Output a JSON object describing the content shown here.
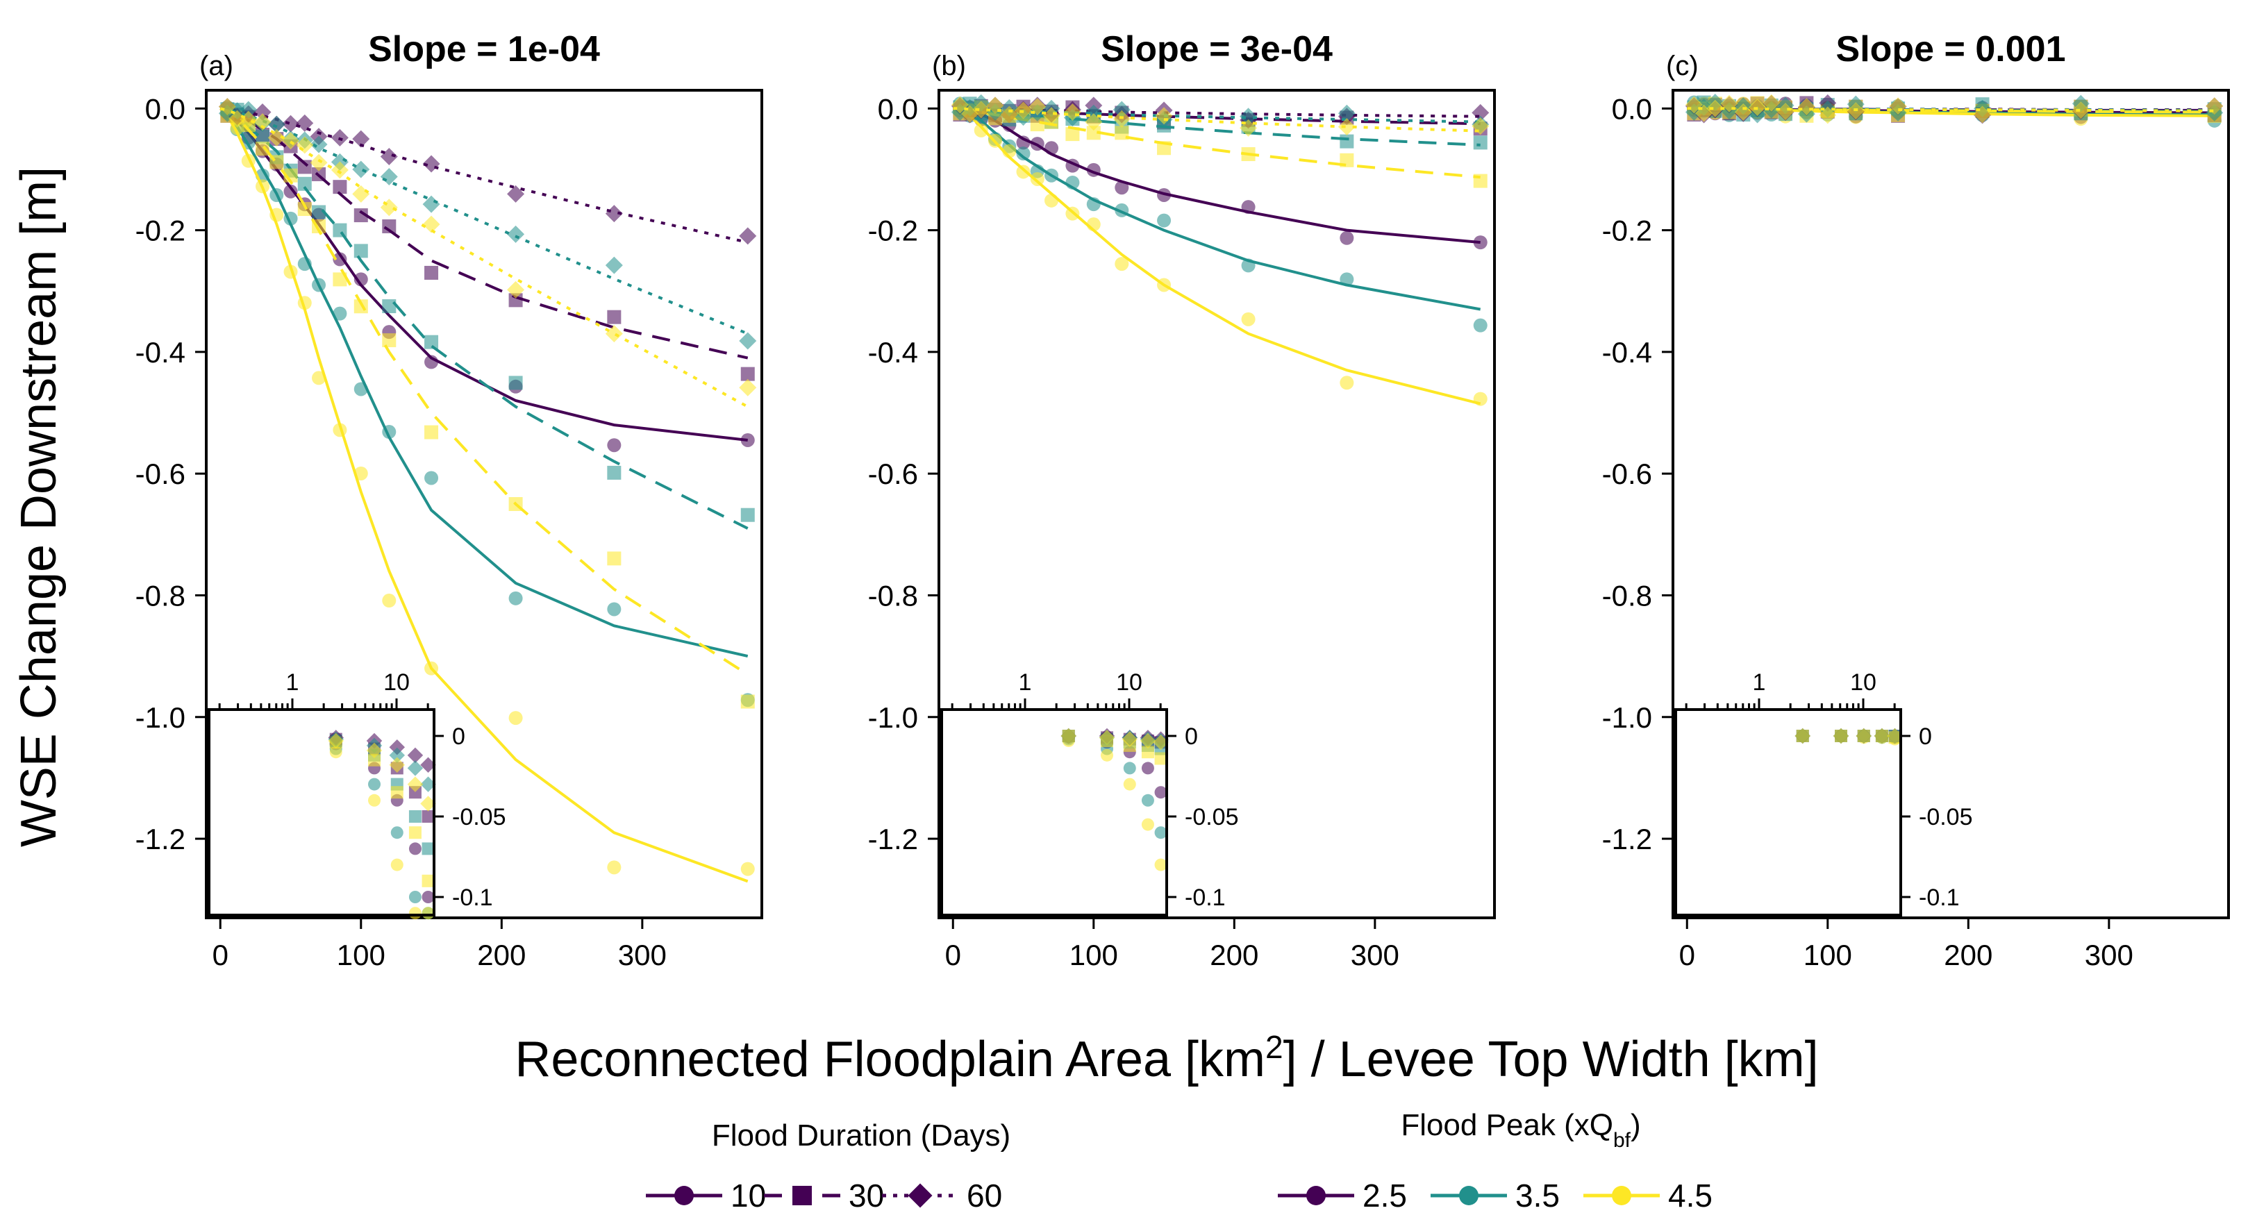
{
  "figure": {
    "x_axis_label_pre": "Reconnected Floodplain Area [km",
    "x_axis_label_sup": "2",
    "x_axis_label_post": "] / Levee Top Width [km]",
    "y_axis_label": "WSE Change Downstream [m]",
    "legend": {
      "duration_title": "Flood Duration (Days)",
      "duration_items": [
        {
          "label": "10",
          "line": "solid",
          "marker": "circle"
        },
        {
          "label": "30",
          "line": "dashed",
          "marker": "square"
        },
        {
          "label": "60",
          "line": "dotted",
          "marker": "diamond"
        }
      ],
      "peak_title_pre": "Flood Peak (xQ",
      "peak_title_sub": "bf",
      "peak_title_post": ")",
      "peak_items": [
        {
          "label": "2.5",
          "color": "#440154"
        },
        {
          "label": "3.5",
          "color": "#21908C"
        },
        {
          "label": "4.5",
          "color": "#FDE725"
        }
      ]
    }
  },
  "chart_data": [
    {
      "type": "line",
      "panel_label": "(a)",
      "title": "Slope = 1e-04",
      "xlim": [
        -10,
        385
      ],
      "ylim": [
        -1.33,
        0.03
      ],
      "x_ticks": [
        "0",
        "100",
        "200",
        "300"
      ],
      "y_ticks": [
        "0.0",
        "-0.2",
        "-0.4",
        "-0.6",
        "-0.8",
        "-1.0",
        "-1.2"
      ],
      "inset": {
        "x_ticks": [
          "1",
          "10"
        ],
        "y_ticks": [
          "0",
          "-0.05",
          "-0.1"
        ],
        "ylim": [
          -0.11,
          0.005
        ],
        "x_scale": "log"
      },
      "x": [
        0,
        5,
        12,
        20,
        30,
        40,
        50,
        60,
        70,
        85,
        100,
        120,
        150,
        210,
        280,
        375
      ],
      "series": [
        {
          "duration": "10",
          "peak": "2.5",
          "values": [
            0,
            -0.005,
            -0.02,
            -0.04,
            -0.07,
            -0.1,
            -0.13,
            -0.16,
            -0.19,
            -0.24,
            -0.29,
            -0.34,
            -0.41,
            -0.48,
            -0.52,
            -0.545
          ]
        },
        {
          "duration": "10",
          "peak": "3.5",
          "values": [
            0,
            -0.008,
            -0.03,
            -0.06,
            -0.1,
            -0.14,
            -0.19,
            -0.24,
            -0.29,
            -0.36,
            -0.44,
            -0.54,
            -0.66,
            -0.78,
            -0.85,
            -0.9
          ]
        },
        {
          "duration": "10",
          "peak": "4.5",
          "values": [
            0,
            -0.01,
            -0.04,
            -0.08,
            -0.13,
            -0.19,
            -0.26,
            -0.33,
            -0.41,
            -0.52,
            -0.63,
            -0.76,
            -0.92,
            -1.07,
            -1.19,
            -1.27
          ]
        },
        {
          "duration": "30",
          "peak": "2.5",
          "values": [
            0,
            -0.002,
            -0.008,
            -0.02,
            -0.035,
            -0.05,
            -0.07,
            -0.09,
            -0.11,
            -0.14,
            -0.17,
            -0.2,
            -0.25,
            -0.31,
            -0.36,
            -0.41
          ]
        },
        {
          "duration": "30",
          "peak": "3.5",
          "values": [
            0,
            -0.003,
            -0.012,
            -0.03,
            -0.05,
            -0.07,
            -0.1,
            -0.13,
            -0.16,
            -0.2,
            -0.25,
            -0.31,
            -0.39,
            -0.49,
            -0.58,
            -0.69
          ]
        },
        {
          "duration": "30",
          "peak": "4.5",
          "values": [
            0,
            -0.004,
            -0.015,
            -0.035,
            -0.06,
            -0.09,
            -0.12,
            -0.16,
            -0.2,
            -0.26,
            -0.32,
            -0.4,
            -0.5,
            -0.65,
            -0.79,
            -0.93
          ]
        },
        {
          "duration": "60",
          "peak": "2.5",
          "values": [
            0,
            -0.001,
            -0.003,
            -0.007,
            -0.012,
            -0.018,
            -0.025,
            -0.032,
            -0.04,
            -0.05,
            -0.06,
            -0.075,
            -0.095,
            -0.13,
            -0.17,
            -0.22
          ]
        },
        {
          "duration": "60",
          "peak": "3.5",
          "values": [
            0,
            -0.002,
            -0.006,
            -0.012,
            -0.02,
            -0.03,
            -0.04,
            -0.05,
            -0.065,
            -0.08,
            -0.1,
            -0.12,
            -0.15,
            -0.21,
            -0.28,
            -0.37
          ]
        },
        {
          "duration": "60",
          "peak": "4.5",
          "values": [
            0,
            -0.003,
            -0.009,
            -0.018,
            -0.03,
            -0.042,
            -0.055,
            -0.07,
            -0.085,
            -0.105,
            -0.13,
            -0.16,
            -0.2,
            -0.28,
            -0.37,
            -0.49
          ]
        }
      ]
    },
    {
      "type": "line",
      "panel_label": "(b)",
      "title": "Slope = 3e-04",
      "xlim": [
        -10,
        385
      ],
      "ylim": [
        -1.33,
        0.03
      ],
      "x_ticks": [
        "0",
        "100",
        "200",
        "300"
      ],
      "y_ticks": [
        "0.0",
        "-0.2",
        "-0.4",
        "-0.6",
        "-0.8",
        "-1.0",
        "-1.2"
      ],
      "inset": {
        "x_ticks": [
          "1",
          "10"
        ],
        "y_ticks": [
          "0",
          "-0.05",
          "-0.1"
        ],
        "ylim": [
          -0.11,
          0.005
        ],
        "x_scale": "log"
      },
      "x": [
        0,
        5,
        12,
        20,
        30,
        40,
        50,
        60,
        70,
        85,
        100,
        120,
        150,
        210,
        280,
        375
      ],
      "series": [
        {
          "duration": "10",
          "peak": "2.5",
          "values": [
            0,
            -0.001,
            -0.004,
            -0.01,
            -0.02,
            -0.035,
            -0.05,
            -0.06,
            -0.075,
            -0.09,
            -0.105,
            -0.12,
            -0.14,
            -0.17,
            -0.2,
            -0.22
          ]
        },
        {
          "duration": "10",
          "peak": "3.5",
          "values": [
            0,
            -0.002,
            -0.008,
            -0.02,
            -0.04,
            -0.06,
            -0.08,
            -0.095,
            -0.11,
            -0.13,
            -0.15,
            -0.17,
            -0.2,
            -0.25,
            -0.29,
            -0.33
          ]
        },
        {
          "duration": "10",
          "peak": "4.5",
          "values": [
            0,
            -0.003,
            -0.012,
            -0.03,
            -0.055,
            -0.08,
            -0.1,
            -0.12,
            -0.14,
            -0.17,
            -0.2,
            -0.24,
            -0.29,
            -0.37,
            -0.43,
            -0.485
          ]
        },
        {
          "duration": "30",
          "peak": "2.5",
          "values": [
            0,
            0,
            -0.001,
            -0.002,
            -0.003,
            -0.004,
            -0.005,
            -0.006,
            -0.007,
            -0.008,
            -0.009,
            -0.011,
            -0.013,
            -0.017,
            -0.021,
            -0.025
          ]
        },
        {
          "duration": "30",
          "peak": "3.5",
          "values": [
            0,
            0,
            -0.002,
            -0.004,
            -0.006,
            -0.008,
            -0.01,
            -0.012,
            -0.014,
            -0.017,
            -0.02,
            -0.024,
            -0.03,
            -0.04,
            -0.05,
            -0.06
          ]
        },
        {
          "duration": "30",
          "peak": "4.5",
          "values": [
            0,
            0,
            -0.003,
            -0.006,
            -0.01,
            -0.014,
            -0.018,
            -0.022,
            -0.026,
            -0.032,
            -0.038,
            -0.046,
            -0.057,
            -0.075,
            -0.093,
            -0.113
          ]
        },
        {
          "duration": "60",
          "peak": "2.5",
          "values": [
            0,
            0,
            0,
            -0.001,
            -0.001,
            -0.002,
            -0.002,
            -0.003,
            -0.003,
            -0.004,
            -0.005,
            -0.006,
            -0.007,
            -0.009,
            -0.011,
            -0.013
          ]
        },
        {
          "duration": "60",
          "peak": "3.5",
          "values": [
            0,
            0,
            -0.001,
            -0.001,
            -0.002,
            -0.003,
            -0.004,
            -0.005,
            -0.006,
            -0.007,
            -0.008,
            -0.01,
            -0.012,
            -0.015,
            -0.018,
            -0.022
          ]
        },
        {
          "duration": "60",
          "peak": "4.5",
          "values": [
            0,
            0,
            -0.001,
            -0.002,
            -0.003,
            -0.004,
            -0.005,
            -0.007,
            -0.008,
            -0.01,
            -0.012,
            -0.015,
            -0.018,
            -0.024,
            -0.03,
            -0.037
          ]
        }
      ]
    },
    {
      "type": "line",
      "panel_label": "(c)",
      "title": "Slope = 0.001",
      "xlim": [
        -10,
        385
      ],
      "ylim": [
        -1.33,
        0.03
      ],
      "x_ticks": [
        "0",
        "100",
        "200",
        "300"
      ],
      "y_ticks": [
        "0.0",
        "-0.2",
        "-0.4",
        "-0.6",
        "-0.8",
        "-1.0",
        "-1.2"
      ],
      "inset": {
        "x_ticks": [
          "1",
          "10"
        ],
        "y_ticks": [
          "0",
          "-0.05",
          "-0.1"
        ],
        "ylim": [
          -0.11,
          0.005
        ],
        "x_scale": "log"
      },
      "x": [
        0,
        5,
        12,
        20,
        30,
        40,
        50,
        60,
        70,
        85,
        100,
        120,
        150,
        210,
        280,
        375
      ],
      "series": [
        {
          "duration": "10",
          "peak": "2.5",
          "values": [
            0,
            0,
            0,
            0,
            0,
            -0.001,
            -0.001,
            -0.001,
            -0.002,
            -0.002,
            -0.003,
            -0.003,
            -0.004,
            -0.005,
            -0.006,
            -0.007
          ]
        },
        {
          "duration": "10",
          "peak": "3.5",
          "values": [
            0,
            0,
            0,
            0,
            -0.001,
            -0.001,
            -0.002,
            -0.002,
            -0.003,
            -0.003,
            -0.004,
            -0.005,
            -0.006,
            -0.007,
            -0.009,
            -0.01
          ]
        },
        {
          "duration": "10",
          "peak": "4.5",
          "values": [
            0,
            0,
            0,
            -0.001,
            -0.001,
            -0.002,
            -0.002,
            -0.003,
            -0.003,
            -0.004,
            -0.005,
            -0.006,
            -0.007,
            -0.009,
            -0.011,
            -0.012
          ]
        },
        {
          "duration": "30",
          "peak": "2.5",
          "values": [
            0,
            0,
            0,
            0,
            0,
            0,
            0,
            0,
            -0.001,
            -0.001,
            -0.001,
            -0.001,
            -0.002,
            -0.002,
            -0.003,
            -0.003
          ]
        },
        {
          "duration": "30",
          "peak": "3.5",
          "values": [
            0,
            0,
            0,
            0,
            0,
            0,
            -0.001,
            -0.001,
            -0.001,
            -0.001,
            -0.002,
            -0.002,
            -0.002,
            -0.003,
            -0.004,
            -0.005
          ]
        },
        {
          "duration": "30",
          "peak": "4.5",
          "values": [
            0,
            0,
            0,
            0,
            0,
            -0.001,
            -0.001,
            -0.001,
            -0.002,
            -0.002,
            -0.002,
            -0.003,
            -0.003,
            -0.004,
            -0.005,
            -0.006
          ]
        },
        {
          "duration": "60",
          "peak": "2.5",
          "values": [
            0,
            0,
            0,
            0,
            0,
            0,
            0,
            0,
            0,
            0,
            -0.001,
            -0.001,
            -0.001,
            -0.001,
            -0.002,
            -0.002
          ]
        },
        {
          "duration": "60",
          "peak": "3.5",
          "values": [
            0,
            0,
            0,
            0,
            0,
            0,
            0,
            0,
            -0.001,
            -0.001,
            -0.001,
            -0.001,
            -0.001,
            -0.002,
            -0.002,
            -0.003
          ]
        },
        {
          "duration": "60",
          "peak": "4.5",
          "values": [
            0,
            0,
            0,
            0,
            0,
            0,
            0,
            -0.001,
            -0.001,
            -0.001,
            -0.001,
            -0.002,
            -0.002,
            -0.002,
            -0.003,
            -0.004
          ]
        }
      ]
    }
  ]
}
